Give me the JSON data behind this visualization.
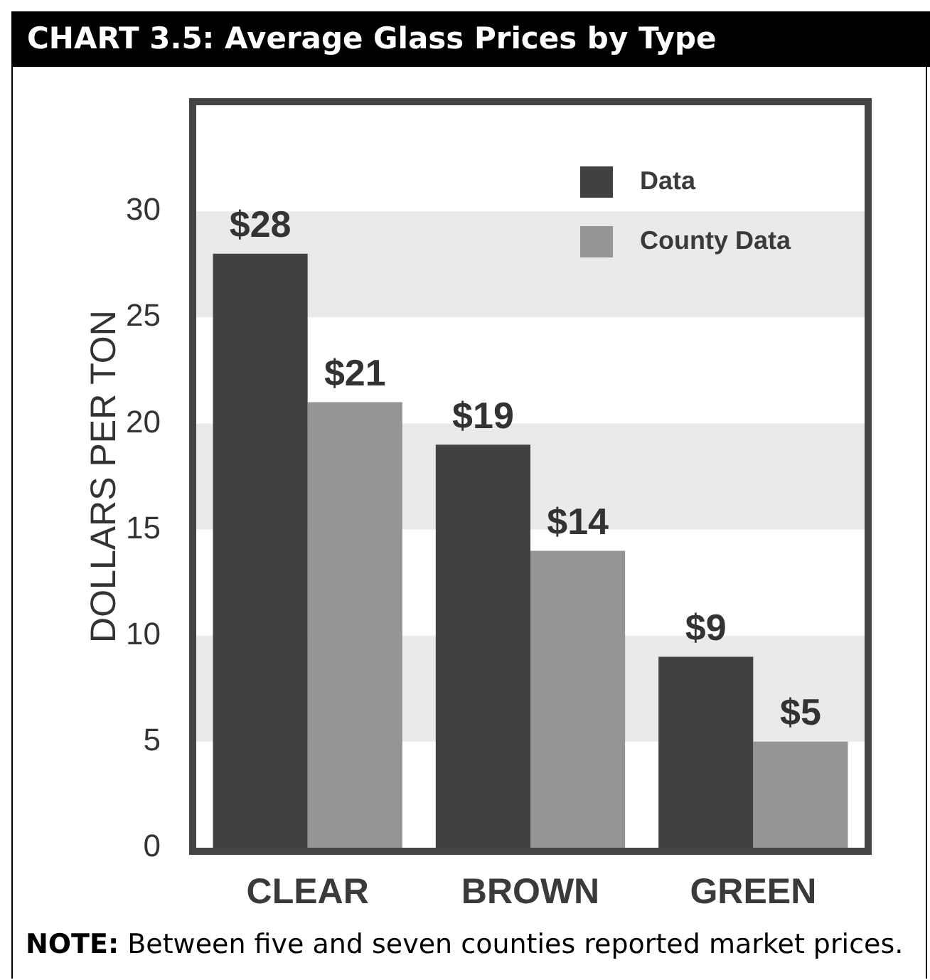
{
  "chart_data": {
    "type": "bar",
    "title": "CHART 3.5: Average Glass Prices by Type",
    "ylabel": "DOLLARS PER TON",
    "categories": [
      "CLEAR",
      "BROWN",
      "GREEN"
    ],
    "series": [
      {
        "name": "Data",
        "color": "#414141",
        "values": [
          28,
          19,
          9
        ],
        "value_labels": [
          "$28",
          "$19",
          "$9"
        ]
      },
      {
        "name": "County Data",
        "color": "#949597",
        "values": [
          21,
          14,
          5
        ],
        "value_labels": [
          "$21",
          "$14",
          "$5"
        ]
      }
    ],
    "ylim": [
      0,
      35
    ],
    "yticks": [
      0,
      5,
      10,
      15,
      20,
      25,
      30
    ],
    "bands": [
      {
        "axis": "y",
        "from": 5,
        "to": 10,
        "color": "#e9eaea"
      },
      {
        "axis": "y",
        "from": 15,
        "to": 20,
        "color": "#e9eaea"
      },
      {
        "axis": "y",
        "from": 25,
        "to": 30,
        "color": "#e9eaea"
      }
    ],
    "legend": "top right",
    "annotations": [
      "NOTE: Between five and seven counties reported market prices."
    ]
  }
}
